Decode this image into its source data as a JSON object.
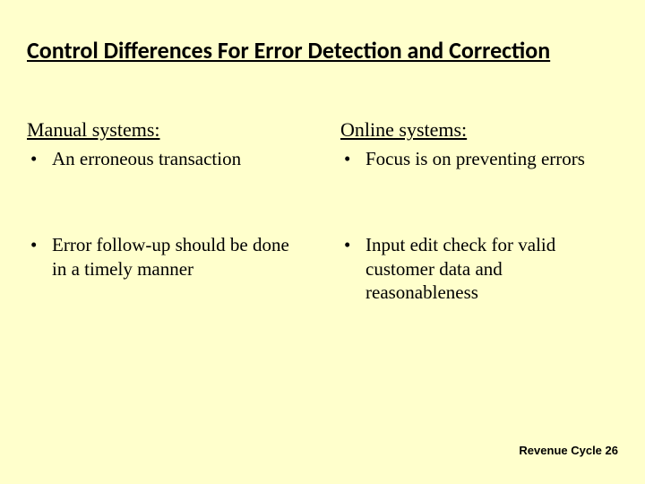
{
  "title": "Control Differences For Error Detection and Correction",
  "left": {
    "heading": "Manual systems:",
    "items": [
      "An erroneous transaction",
      "Error follow-up should be done in a timely manner"
    ]
  },
  "right": {
    "heading": "Online systems:",
    "items": [
      "Focus is on preventing errors",
      "Input edit check for valid customer data and reasonableness"
    ]
  },
  "footer": "Revenue Cycle 26",
  "style": {
    "background_color": "#ffffcc",
    "text_color": "#000000",
    "title_fontsize": 26,
    "heading_fontsize": 22,
    "body_fontsize": 21,
    "footer_fontsize": 13
  }
}
